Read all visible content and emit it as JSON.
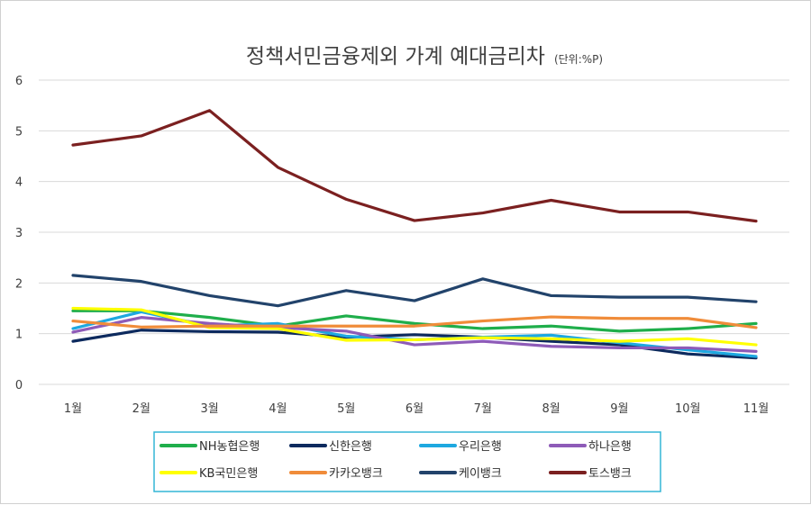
{
  "chart_data": {
    "type": "line",
    "title": "정책서민금융제외 가계 예대금리차",
    "subtitle": "(단위:%P)",
    "xlabel": "",
    "ylabel": "",
    "categories": [
      "1월",
      "2월",
      "3월",
      "4월",
      "5월",
      "6월",
      "7월",
      "8월",
      "9월",
      "10월",
      "11월"
    ],
    "ylim": [
      0,
      6
    ],
    "yticks": [
      0,
      1,
      2,
      3,
      4,
      5,
      6
    ],
    "grid": true,
    "legend": "bottom",
    "series": [
      {
        "name": "NH농협은행",
        "color": "#1fae4b",
        "values": [
          1.45,
          1.45,
          1.32,
          1.15,
          1.35,
          1.2,
          1.1,
          1.15,
          1.05,
          1.1,
          1.2
        ]
      },
      {
        "name": "신한은행",
        "color": "#0d2a5e",
        "values": [
          0.85,
          1.07,
          1.04,
          1.03,
          0.93,
          0.98,
          0.93,
          0.85,
          0.78,
          0.6,
          0.52
        ]
      },
      {
        "name": "우리은행",
        "color": "#1ea8e0",
        "values": [
          1.1,
          1.43,
          1.15,
          1.2,
          0.95,
          0.88,
          0.93,
          0.97,
          0.82,
          0.68,
          0.55
        ]
      },
      {
        "name": "하나은행",
        "color": "#8e5bb8",
        "values": [
          1.03,
          1.32,
          1.2,
          1.12,
          1.05,
          0.78,
          0.85,
          0.75,
          0.72,
          0.72,
          0.65
        ]
      },
      {
        "name": "KB국민은행",
        "color": "#ffff00",
        "values": [
          1.5,
          1.47,
          1.12,
          1.1,
          0.87,
          0.88,
          0.92,
          0.9,
          0.85,
          0.9,
          0.78
        ]
      },
      {
        "name": "카카오뱅크",
        "color": "#f08c3a",
        "values": [
          1.25,
          1.13,
          1.15,
          1.15,
          1.15,
          1.15,
          1.25,
          1.33,
          1.3,
          1.3,
          1.12
        ]
      },
      {
        "name": "케이뱅크",
        "color": "#22436b",
        "values": [
          2.15,
          2.03,
          1.75,
          1.55,
          1.85,
          1.65,
          2.08,
          1.75,
          1.72,
          1.72,
          1.63
        ]
      },
      {
        "name": "토스뱅크",
        "color": "#7b2020",
        "values": [
          4.72,
          4.9,
          5.4,
          4.28,
          3.65,
          3.23,
          3.38,
          3.63,
          3.4,
          3.4,
          3.22
        ]
      }
    ]
  }
}
